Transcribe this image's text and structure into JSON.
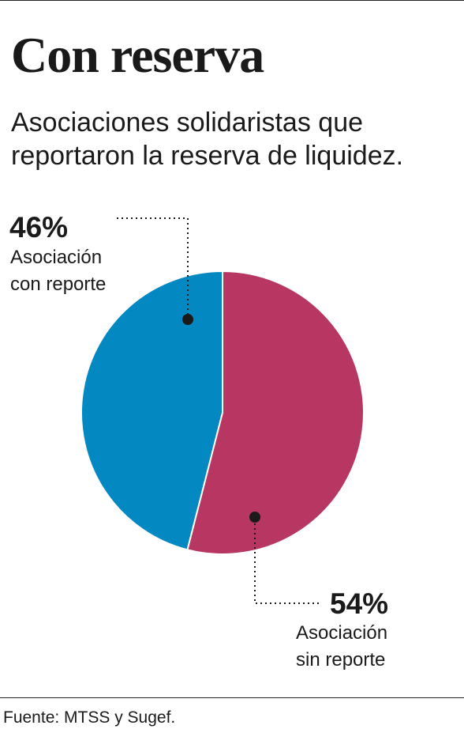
{
  "title": "Con reserva",
  "subtitle": "Asociaciones solidaristas que reportaron la reserva de liquidez.",
  "source": "Fuente: MTSS y Sugef.",
  "chart_data": {
    "type": "pie",
    "title": "Con reserva",
    "subtitle": "Asociaciones solidaristas que reportaron la reserva de liquidez.",
    "slices": [
      {
        "label": "Asociación con reporte",
        "value": 46,
        "display": "46%",
        "color": "#0388c2"
      },
      {
        "label": "Asociación sin reporte",
        "value": 54,
        "display": "54%",
        "color": "#b73662"
      }
    ],
    "legend": "callouts"
  },
  "callouts": {
    "con_reporte": {
      "percent": "46%",
      "label": "Asociación\ncon reporte"
    },
    "sin_reporte": {
      "percent": "54%",
      "label": "Asociación\nsin reporte"
    }
  }
}
